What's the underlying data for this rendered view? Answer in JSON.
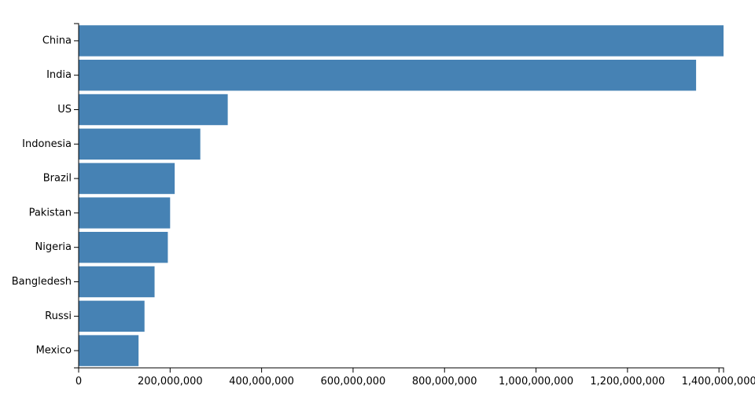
{
  "chart_data": {
    "type": "bar",
    "orientation": "horizontal",
    "title": "",
    "xlabel": "",
    "ylabel": "",
    "categories": [
      "China",
      "India",
      "US",
      "Indonesia",
      "Brazil",
      "Pakistan",
      "Nigeria",
      "Bangledesh",
      "Russi",
      "Mexico"
    ],
    "values": [
      1410000000,
      1350000000,
      326000000,
      266000000,
      210000000,
      200000000,
      195000000,
      166000000,
      144000000,
      131000000
    ],
    "xlim": [
      0,
      1410000000
    ],
    "xticks": [
      0,
      200000000,
      400000000,
      600000000,
      800000000,
      1000000000,
      1200000000,
      1400000000
    ],
    "xtick_labels": [
      "0",
      "200,000,000",
      "400,000,000",
      "600,000,000",
      "800,000,000",
      "1,000,000,000",
      "1,200,000,000",
      "1,400,000,000"
    ],
    "grid": false,
    "legend": "none",
    "bar_color": "#4682b4"
  }
}
